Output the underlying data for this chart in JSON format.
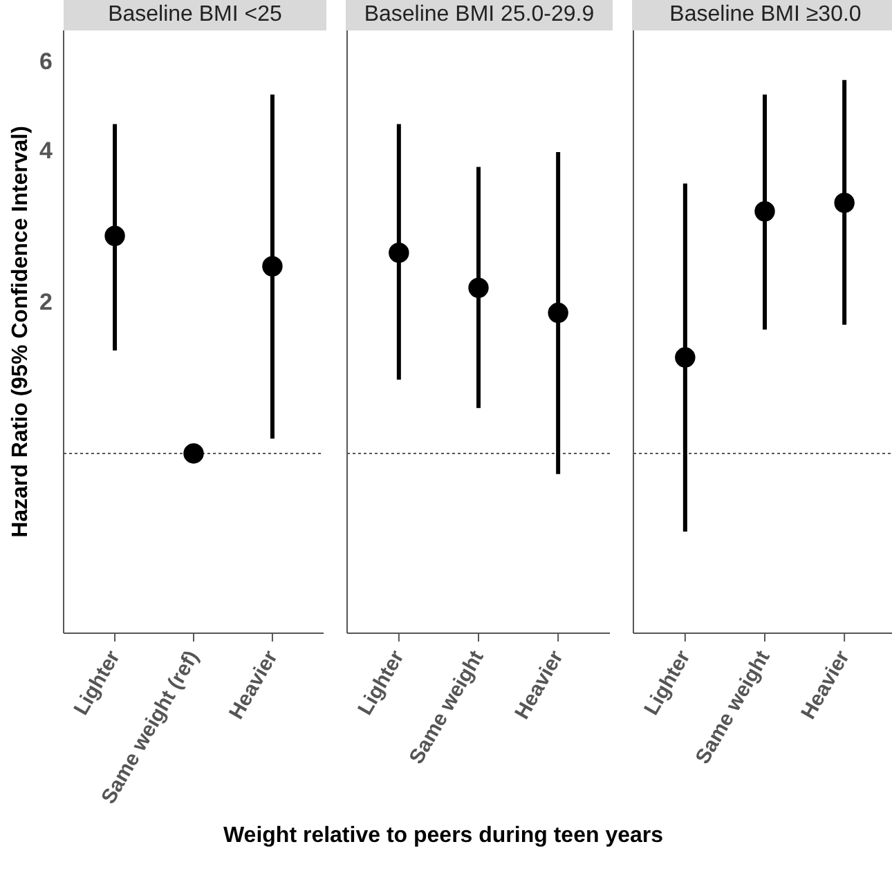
{
  "chart_data": [
    {
      "type": "scatter",
      "title": "Baseline BMI <25",
      "ylabel": "Hazard Ratio (95% Confidence Interval)",
      "categories": [
        "Lighter",
        "Same weight (ref)",
        "Heavier"
      ],
      "series": [
        {
          "color": "#000000",
          "values": [
            2.7,
            1,
            2.35
          ],
          "errors": [
            [
              1.6,
              4.5
            ],
            null,
            [
              1.07,
              5.15
            ]
          ]
        }
      ],
      "log": "y",
      "ylim": [
        0.44,
        6.9
      ],
      "yticks": [
        2,
        4,
        6
      ],
      "ref_lines": [
        {
          "axis": "y",
          "value": 1,
          "line_style": "dotted",
          "color": "#555555"
        }
      ],
      "marker": "circle"
    },
    {
      "type": "scatter",
      "title": "Baseline BMI 25.0-29.9",
      "xlabel": "Weight relative to peers during teen years",
      "categories": [
        "Lighter",
        "Same weight",
        "Heavier"
      ],
      "series": [
        {
          "color": "#000000",
          "values": [
            2.5,
            2.13,
            1.9
          ],
          "errors": [
            [
              1.4,
              4.5
            ],
            [
              1.23,
              3.7
            ],
            [
              0.91,
              3.96
            ]
          ]
        }
      ],
      "log": "y",
      "ylim": [
        0.44,
        6.9
      ],
      "yticks": [
        2,
        4,
        6
      ],
      "tick_labels": "x",
      "ref_lines": [
        {
          "axis": "y",
          "value": 1,
          "line_style": "dotted",
          "color": "#555555"
        }
      ],
      "marker": "circle"
    },
    {
      "type": "scatter",
      "title": "Baseline BMI ≥30.0",
      "categories": [
        "Lighter",
        "Same weight",
        "Heavier"
      ],
      "series": [
        {
          "color": "#000000",
          "values": [
            1.55,
            3.02,
            3.14
          ],
          "errors": [
            [
              0.7,
              3.43
            ],
            [
              1.76,
              5.15
            ],
            [
              1.8,
              5.5
            ]
          ]
        }
      ],
      "log": "y",
      "ylim": [
        0.44,
        6.9
      ],
      "yticks": [
        2,
        4,
        6
      ],
      "tick_labels": "x",
      "ref_lines": [
        {
          "axis": "y",
          "value": 1,
          "line_style": "dotted",
          "color": "#555555"
        }
      ],
      "marker": "circle"
    }
  ]
}
